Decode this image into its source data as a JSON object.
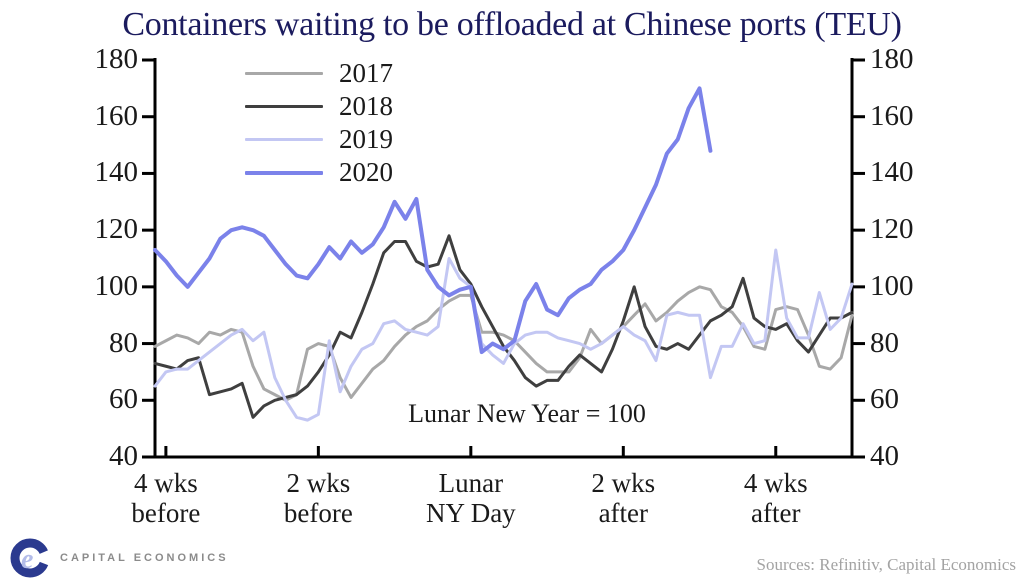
{
  "title": "Containers waiting to be offloaded at Chinese ports (TEU)",
  "annotation": "Lunar New Year = 100",
  "footer": {
    "logo_text": "CAPITAL ECONOMICS",
    "logo_letter": "e",
    "sources": "Sources: Refinitiv, Capital Economics"
  },
  "colors": {
    "title_navy": "#1b1b5e",
    "axis_black": "#000000",
    "logo_blue": "#2b3a8f",
    "logo_lavender": "#b3bce9",
    "brand_gray": "#8b8b8b",
    "sources_gray": "#a3a3a3"
  },
  "chart_data": {
    "type": "line",
    "title": "Containers waiting to be offloaded at Chinese ports (TEU)",
    "annotation": "Lunar New Year = 100",
    "grid": false,
    "legend_position": "top-left-inside",
    "x_axis": {
      "unit": "days relative to Lunar New Year Day",
      "min_day": -29,
      "max_day": 35,
      "ticks": [
        {
          "day": -28,
          "line1": "4 wks",
          "line2": "before"
        },
        {
          "day": -14,
          "line1": "2 wks",
          "line2": "before"
        },
        {
          "day": 0,
          "line1": "Lunar",
          "line2": "NY Day"
        },
        {
          "day": 14,
          "line1": "2 wks",
          "line2": "after"
        },
        {
          "day": 28,
          "line1": "4 wks",
          "line2": "after"
        }
      ]
    },
    "y_axis": {
      "min": 40,
      "max": 180,
      "step": 20,
      "ticks": [
        40,
        60,
        80,
        100,
        120,
        140,
        160,
        180
      ],
      "sides": "both"
    },
    "series": [
      {
        "name": "2017",
        "color": "#a8a8a8",
        "width": 3,
        "start_day": -29,
        "values": [
          79,
          81,
          83,
          82,
          80,
          84,
          83,
          85,
          84,
          72,
          64,
          62,
          60,
          62,
          78,
          80,
          79,
          68,
          61,
          66,
          71,
          74,
          79,
          83,
          86,
          88,
          92,
          95,
          97,
          97,
          84,
          84,
          83,
          81,
          77,
          73,
          70,
          70,
          70,
          75,
          85,
          80,
          83,
          86,
          90,
          94,
          88,
          91,
          95,
          98,
          100,
          99,
          93,
          91,
          86,
          79,
          78,
          92,
          93,
          92,
          83,
          72,
          71,
          75,
          90
        ]
      },
      {
        "name": "2018",
        "color": "#3f3f3f",
        "width": 3,
        "start_day": -29,
        "values": [
          73,
          72,
          71,
          74,
          75,
          62,
          63,
          64,
          66,
          54,
          58,
          60,
          61,
          62,
          65,
          70,
          76,
          84,
          82,
          91,
          101,
          112,
          116,
          116,
          109,
          107,
          108,
          118,
          106,
          101,
          93,
          86,
          79,
          74,
          68,
          65,
          67,
          67,
          72,
          76,
          73,
          70,
          78,
          88,
          100,
          86,
          79,
          78,
          80,
          78,
          83,
          88,
          90,
          93,
          103,
          89,
          86,
          85,
          87,
          81,
          77,
          83,
          89,
          89,
          91
        ]
      },
      {
        "name": "2019",
        "color": "#c3c7f3",
        "width": 3,
        "start_day": -29,
        "values": [
          65,
          70,
          71,
          71,
          74,
          77,
          80,
          83,
          85,
          81,
          84,
          68,
          60,
          54,
          53,
          55,
          81,
          63,
          72,
          78,
          80,
          87,
          88,
          85,
          84,
          83,
          86,
          110,
          103,
          100,
          80,
          76,
          73,
          80,
          83,
          84,
          84,
          82,
          81,
          80,
          78,
          80,
          83,
          86,
          83,
          81,
          74,
          90,
          91,
          90,
          90,
          68,
          79,
          79,
          87,
          80,
          81,
          113,
          89,
          82,
          82,
          98,
          85,
          89,
          101
        ]
      },
      {
        "name": "2020",
        "color": "#7b82ea",
        "width": 4,
        "start_day": -29,
        "values": [
          113,
          109,
          104,
          100,
          105,
          110,
          117,
          120,
          121,
          120,
          118,
          113,
          108,
          104,
          103,
          108,
          114,
          110,
          116,
          112,
          115,
          121,
          130,
          124,
          131,
          106,
          100,
          97,
          99,
          100,
          77,
          80,
          78,
          81,
          95,
          101,
          92,
          90,
          96,
          99,
          101,
          106,
          109,
          113,
          120,
          128,
          136,
          147,
          152,
          163,
          170,
          148
        ]
      }
    ]
  }
}
